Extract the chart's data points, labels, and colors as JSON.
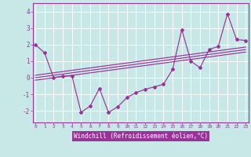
{
  "x": [
    0,
    1,
    2,
    3,
    4,
    5,
    6,
    7,
    8,
    9,
    10,
    11,
    12,
    13,
    14,
    15,
    16,
    17,
    18,
    19,
    20,
    21,
    22,
    23
  ],
  "y_main": [
    2.0,
    1.5,
    0.0,
    0.1,
    0.1,
    -2.1,
    -1.7,
    -0.65,
    -2.1,
    -1.75,
    -1.2,
    -0.9,
    -0.7,
    -0.55,
    -0.4,
    0.5,
    2.9,
    1.0,
    0.6,
    1.7,
    1.9,
    3.85,
    2.3,
    2.25
  ],
  "line_color": "#993399",
  "bg_color": "#c8e8e8",
  "xlabel_bg": "#993399",
  "grid_color": "#b0d8d8",
  "xlabel": "Windchill (Refroidissement éolien,°C)",
  "yticks": [
    -2,
    -1,
    0,
    1,
    2,
    3,
    4
  ],
  "xticks": [
    0,
    1,
    2,
    3,
    4,
    5,
    6,
    7,
    8,
    9,
    10,
    11,
    12,
    13,
    14,
    15,
    16,
    17,
    18,
    19,
    20,
    21,
    22,
    23
  ],
  "ylim": [
    -2.7,
    4.5
  ],
  "xlim": [
    -0.3,
    23.3
  ],
  "reg_lines": [
    {
      "x0": 0,
      "y0": -0.15,
      "x1": 23,
      "y1": 1.55
    },
    {
      "x0": 0,
      "y0": 0.0,
      "x1": 23,
      "y1": 1.7
    },
    {
      "x0": 0,
      "y0": 0.15,
      "x1": 23,
      "y1": 1.85
    }
  ]
}
